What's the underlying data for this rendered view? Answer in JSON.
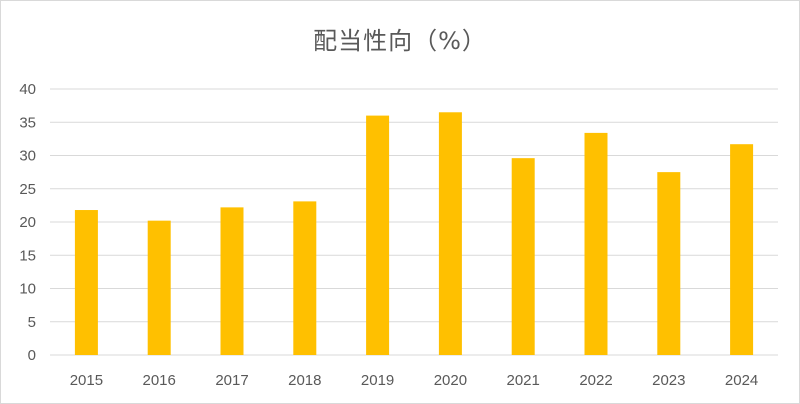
{
  "chart_data": {
    "type": "bar",
    "title": "配当性向（%）",
    "xlabel": "",
    "ylabel": "",
    "categories": [
      "2015",
      "2016",
      "2017",
      "2018",
      "2019",
      "2020",
      "2021",
      "2022",
      "2023",
      "2024"
    ],
    "values": [
      21.8,
      20.2,
      22.2,
      23.1,
      36.0,
      36.5,
      29.6,
      33.4,
      27.5,
      31.7
    ],
    "ylim": [
      0,
      40
    ],
    "yticks": [
      0,
      5,
      10,
      15,
      20,
      25,
      30,
      35,
      40
    ],
    "grid": true,
    "legend": "none",
    "colors": {
      "bar": "#FFC000",
      "grid": "#D9D9D9",
      "text": "#595959"
    }
  }
}
